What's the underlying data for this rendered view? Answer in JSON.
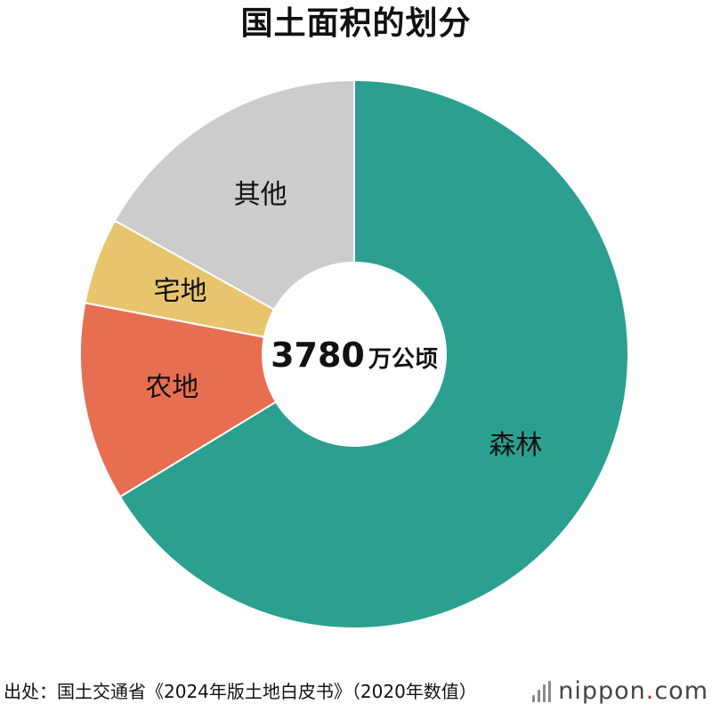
{
  "chart_data": {
    "type": "pie",
    "title": "国土面积的划分",
    "center_value": "3780",
    "center_unit": "万公顷",
    "slices": [
      {
        "label": "森林",
        "value": 66.3,
        "color": "#2ba090"
      },
      {
        "label": "农地",
        "value": 11.7,
        "color": "#e86e52"
      },
      {
        "label": "宅地",
        "value": 5.1,
        "color": "#e8c56d"
      },
      {
        "label": "其他",
        "value": 16.9,
        "color": "#cccccc"
      }
    ],
    "legend": "none"
  },
  "footer": {
    "source": "出处：国土交通省《2024年版土地白皮书》（2020年数值）",
    "brand_name": "nippon",
    "brand_dot": ".",
    "brand_tld": "com"
  }
}
